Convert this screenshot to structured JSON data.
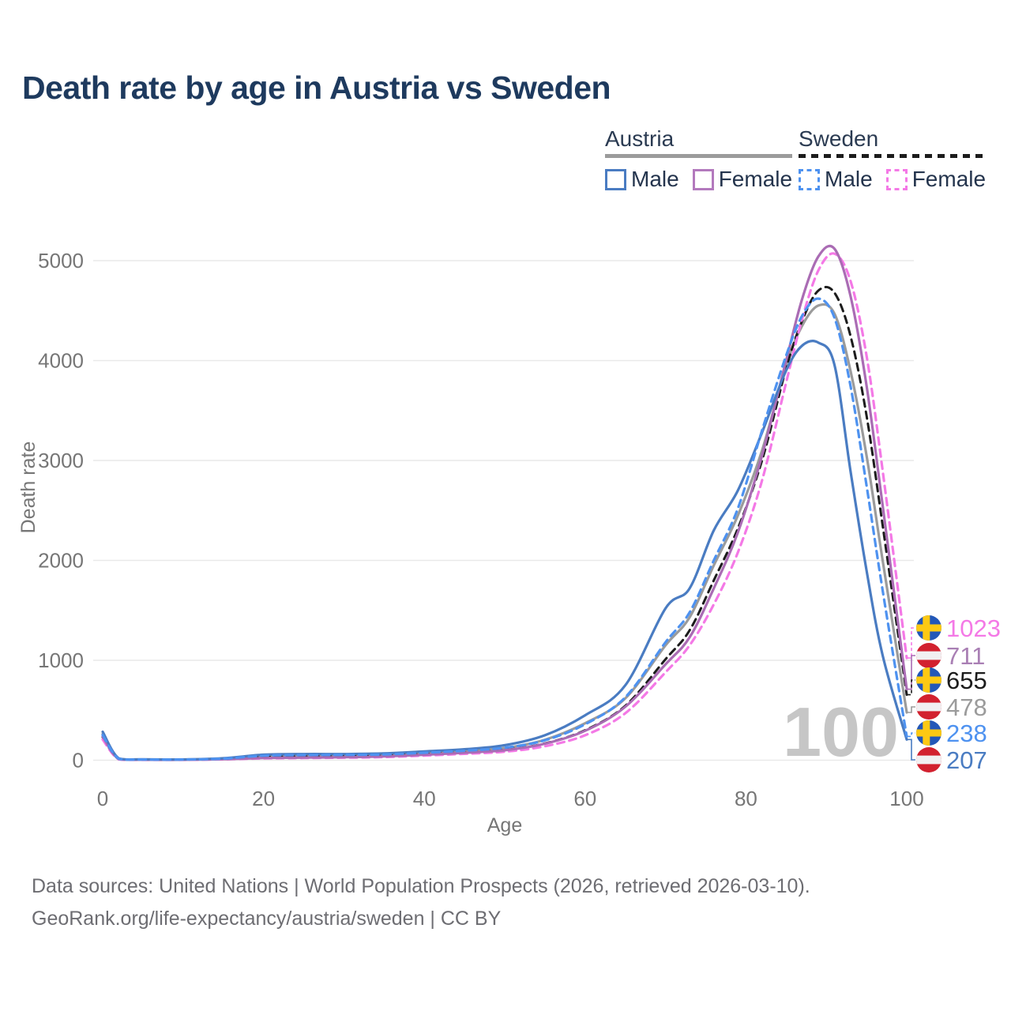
{
  "title": "Death rate by age in Austria vs Sweden",
  "watermark": "100",
  "legend": {
    "groups": [
      {
        "id": "austria",
        "label": "Austria",
        "line_style": "solid",
        "line_color": "#9b9b9b",
        "items": [
          {
            "label": "Male",
            "color": "#4a7cc2",
            "dashed": false
          },
          {
            "label": "Female",
            "color": "#b379bd",
            "dashed": false
          }
        ]
      },
      {
        "id": "sweden",
        "label": "Sweden",
        "line_style": "dashed",
        "line_color": "#1c1c1c",
        "items": [
          {
            "label": "Male",
            "color": "#4e92f0",
            "dashed": true
          },
          {
            "label": "Female",
            "color": "#f479e6",
            "dashed": true
          }
        ]
      }
    ]
  },
  "footer": {
    "line1": "Data sources: United Nations | World Population Prospects (2026, retrieved 2026-03-10).",
    "line2": "GeoRank.org/life-expectancy/austria/sweden | CC BY"
  },
  "chart_data": {
    "type": "line",
    "title": "Death rate by age in Austria vs Sweden",
    "xlabel": "Age",
    "ylabel": "Death rate",
    "x_domain": [
      0,
      100
    ],
    "y_domain": [
      0,
      5000
    ],
    "x_ticks": [
      0,
      20,
      40,
      60,
      80,
      100
    ],
    "y_ticks": [
      0,
      1000,
      2000,
      3000,
      4000,
      5000
    ],
    "grid": "horizontal",
    "legend_position": "top-right",
    "x": [
      0,
      2,
      5,
      10,
      15,
      20,
      25,
      30,
      35,
      40,
      45,
      50,
      55,
      60,
      65,
      70,
      73,
      76,
      79,
      82,
      85,
      87,
      89,
      91,
      93,
      95,
      97,
      100
    ],
    "series": [
      {
        "id": "austria_total",
        "name": "Austria (both sexes)",
        "country": "austria",
        "color": "#9b9b9b",
        "dashed": false,
        "width": 3.2,
        "values": [
          262,
          14,
          7,
          7,
          15,
          38,
          43,
          46,
          52,
          71,
          92,
          122,
          205,
          370,
          620,
          1150,
          1430,
          1950,
          2450,
          3100,
          3950,
          4350,
          4550,
          4470,
          3900,
          3050,
          2000,
          478
        ]
      },
      {
        "id": "sweden_total",
        "name": "Sweden (both sexes)",
        "country": "sweden",
        "color": "#1c1c1c",
        "dashed": true,
        "width": 3,
        "values": [
          230,
          11,
          5,
          5,
          12,
          31,
          36,
          39,
          45,
          61,
          78,
          103,
          168,
          300,
          545,
          1010,
          1300,
          1800,
          2320,
          3000,
          3920,
          4400,
          4700,
          4680,
          4250,
          3450,
          2350,
          655
        ]
      },
      {
        "id": "sweden_female",
        "name": "Sweden Female",
        "country": "sweden",
        "color": "#f479e6",
        "dashed": true,
        "width": 3.2,
        "values": [
          208,
          9,
          4,
          4,
          9,
          18,
          22,
          25,
          32,
          47,
          64,
          85,
          140,
          250,
          470,
          880,
          1150,
          1560,
          2080,
          2800,
          3780,
          4420,
          4900,
          5070,
          4800,
          4050,
          2900,
          1023
        ]
      },
      {
        "id": "austria_female",
        "name": "Austria Female",
        "country": "austria",
        "color": "#aa6cb4",
        "dashed": false,
        "width": 3.2,
        "values": [
          238,
          11,
          5,
          5,
          10,
          22,
          26,
          30,
          38,
          55,
          75,
          100,
          165,
          295,
          535,
          960,
          1230,
          1720,
          2280,
          3050,
          4000,
          4620,
          5040,
          5120,
          4650,
          3750,
          2550,
          711
        ]
      },
      {
        "id": "austria_male",
        "name": "Austria Male",
        "country": "austria",
        "color": "#4a7cc2",
        "dashed": false,
        "width": 3.2,
        "values": [
          285,
          18,
          9,
          8,
          20,
          55,
          62,
          62,
          68,
          88,
          110,
          150,
          250,
          450,
          750,
          1520,
          1720,
          2300,
          2700,
          3280,
          3900,
          4150,
          4180,
          3960,
          2900,
          1900,
          1050,
          207
        ]
      },
      {
        "id": "sweden_male",
        "name": "Sweden Male",
        "country": "sweden",
        "color": "#4e92f0",
        "dashed": true,
        "width": 3.2,
        "values": [
          252,
          14,
          7,
          7,
          16,
          46,
          52,
          54,
          58,
          75,
          95,
          125,
          200,
          360,
          630,
          1180,
          1480,
          2000,
          2520,
          3300,
          4050,
          4450,
          4620,
          4430,
          3750,
          2750,
          1700,
          238
        ]
      }
    ],
    "end_labels": [
      {
        "text": "1023",
        "series": "sweden_female",
        "flag": "sweden",
        "color": "#f479e6"
      },
      {
        "text": "711",
        "series": "austria_female",
        "flag": "austria",
        "color": "#a97fb4"
      },
      {
        "text": "655",
        "series": "sweden_total",
        "flag": "sweden",
        "color": "#1c1c1c"
      },
      {
        "text": "478",
        "series": "austria_total",
        "flag": "austria",
        "color": "#9b9b9b"
      },
      {
        "text": "238",
        "series": "sweden_male",
        "flag": "sweden",
        "color": "#4e92f0"
      },
      {
        "text": "207",
        "series": "austria_male",
        "flag": "austria",
        "color": "#4a7cc2"
      }
    ]
  }
}
